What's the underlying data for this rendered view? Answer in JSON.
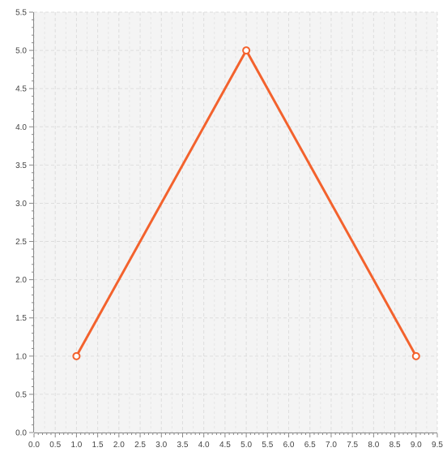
{
  "chart_data": {
    "type": "line",
    "title": "",
    "xlabel": "",
    "ylabel": "",
    "xlim": [
      0,
      9.5
    ],
    "ylim": [
      0,
      5.5
    ],
    "x_ticks": [
      "0.0",
      "0.5",
      "1.0",
      "1.5",
      "2.0",
      "2.5",
      "3.0",
      "3.5",
      "4.0",
      "4.5",
      "5.0",
      "5.5",
      "6.0",
      "6.5",
      "7.0",
      "7.5",
      "8.0",
      "8.5",
      "9.0",
      "9.5"
    ],
    "y_ticks": [
      "0.0",
      "0.5",
      "1.0",
      "1.5",
      "2.0",
      "2.5",
      "3.0",
      "3.5",
      "4.0",
      "4.5",
      "5.0",
      "5.5"
    ],
    "grid": true,
    "legend": "none",
    "series": [
      {
        "color": "#f3622d",
        "marker": "hollow-circle",
        "points": [
          {
            "x": 1.0,
            "y": 1.0
          },
          {
            "x": 5.0,
            "y": 5.0
          },
          {
            "x": 9.0,
            "y": 1.0
          }
        ]
      }
    ]
  },
  "colors": {
    "plot_background": "#f4f4f4",
    "grid": "#dddddd",
    "axis": "#888888",
    "series": "#f3622d"
  }
}
